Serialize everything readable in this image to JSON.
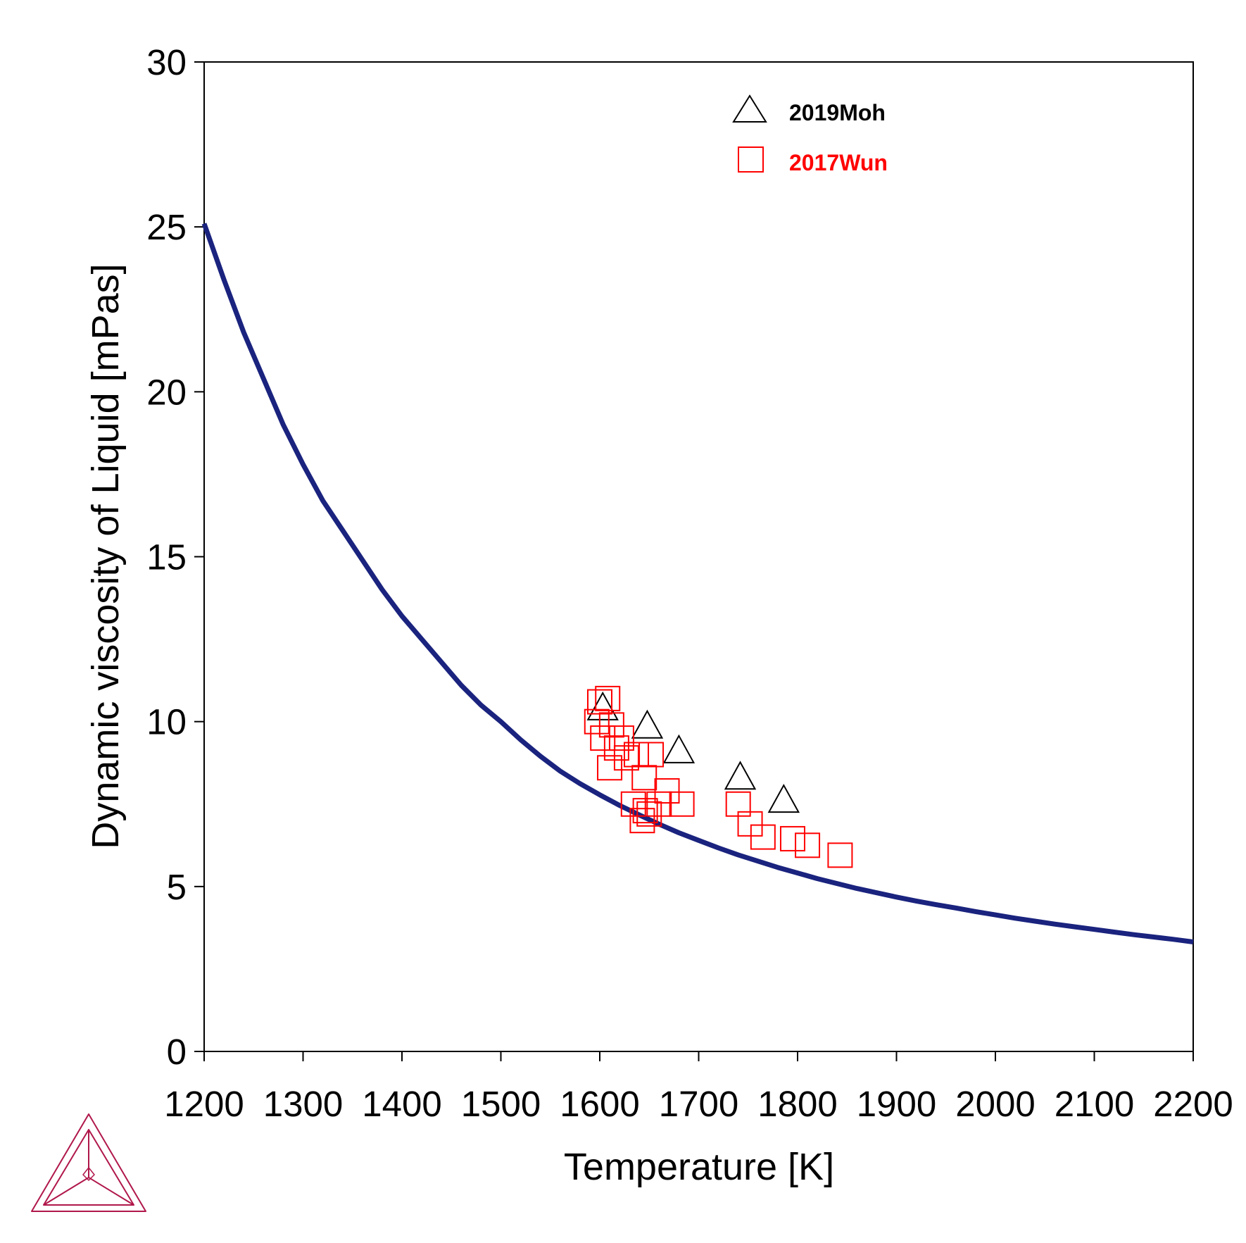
{
  "chart_data": {
    "type": "scatter",
    "xlabel": "Temperature [K]",
    "ylabel": "Dynamic viscosity of Liquid [mPas]",
    "xlim": [
      1200,
      2200
    ],
    "ylim": [
      0,
      30
    ],
    "xticks": [
      "1200",
      "1300",
      "1400",
      "1500",
      "1600",
      "1700",
      "1800",
      "1900",
      "2000",
      "2100",
      "2200"
    ],
    "yticks": [
      "0",
      "5",
      "10",
      "15",
      "20",
      "25",
      "30"
    ],
    "grid": false,
    "legend_position": "top-right",
    "colors": {
      "curve": "#1a237e",
      "moh": "#000000",
      "wun": "#ff0000",
      "logo": "#b0174a"
    },
    "series": [
      {
        "kind": "line",
        "x": [
          1200,
          1220,
          1240,
          1260,
          1280,
          1300,
          1320,
          1340,
          1360,
          1380,
          1400,
          1420,
          1440,
          1460,
          1480,
          1500,
          1520,
          1540,
          1560,
          1580,
          1600,
          1620,
          1640,
          1660,
          1680,
          1700,
          1720,
          1740,
          1760,
          1780,
          1800,
          1820,
          1840,
          1860,
          1880,
          1900,
          1920,
          1940,
          1960,
          1980,
          2000,
          2020,
          2040,
          2060,
          2080,
          2100,
          2120,
          2140,
          2160,
          2180,
          2200
        ],
        "values": [
          25.1,
          23.4,
          21.8,
          20.4,
          19.0,
          17.8,
          16.7,
          15.8,
          14.9,
          14.0,
          13.2,
          12.5,
          11.8,
          11.1,
          10.5,
          10.0,
          9.45,
          8.95,
          8.5,
          8.12,
          7.78,
          7.46,
          7.17,
          6.89,
          6.63,
          6.4,
          6.17,
          5.96,
          5.77,
          5.58,
          5.41,
          5.24,
          5.09,
          4.94,
          4.81,
          4.68,
          4.56,
          4.45,
          4.35,
          4.24,
          4.14,
          4.04,
          3.95,
          3.86,
          3.78,
          3.7,
          3.62,
          3.54,
          3.47,
          3.4,
          3.32
        ]
      },
      {
        "name": "2019Moh",
        "kind": "triangle",
        "x": [
          1603,
          1648,
          1680,
          1742,
          1786
        ],
        "values": [
          10.4,
          9.85,
          9.1,
          8.3,
          7.6
        ]
      },
      {
        "name": "2017Wun",
        "kind": "square",
        "x": [
          1600,
          1608,
          1597,
          1603,
          1612,
          1622,
          1617,
          1627,
          1610,
          1637,
          1645,
          1634,
          1643,
          1650,
          1660,
          1668,
          1683,
          1652,
          1646,
          1740,
          1752,
          1765,
          1795,
          1810,
          1843
        ],
        "values": [
          10.6,
          10.7,
          10.0,
          9.5,
          9.9,
          9.5,
          9.2,
          8.9,
          8.6,
          9.0,
          8.3,
          7.5,
          7.0,
          7.2,
          7.5,
          7.9,
          7.5,
          9.0,
          7.3,
          7.5,
          6.9,
          6.5,
          6.45,
          6.25,
          5.95
        ]
      }
    ]
  }
}
